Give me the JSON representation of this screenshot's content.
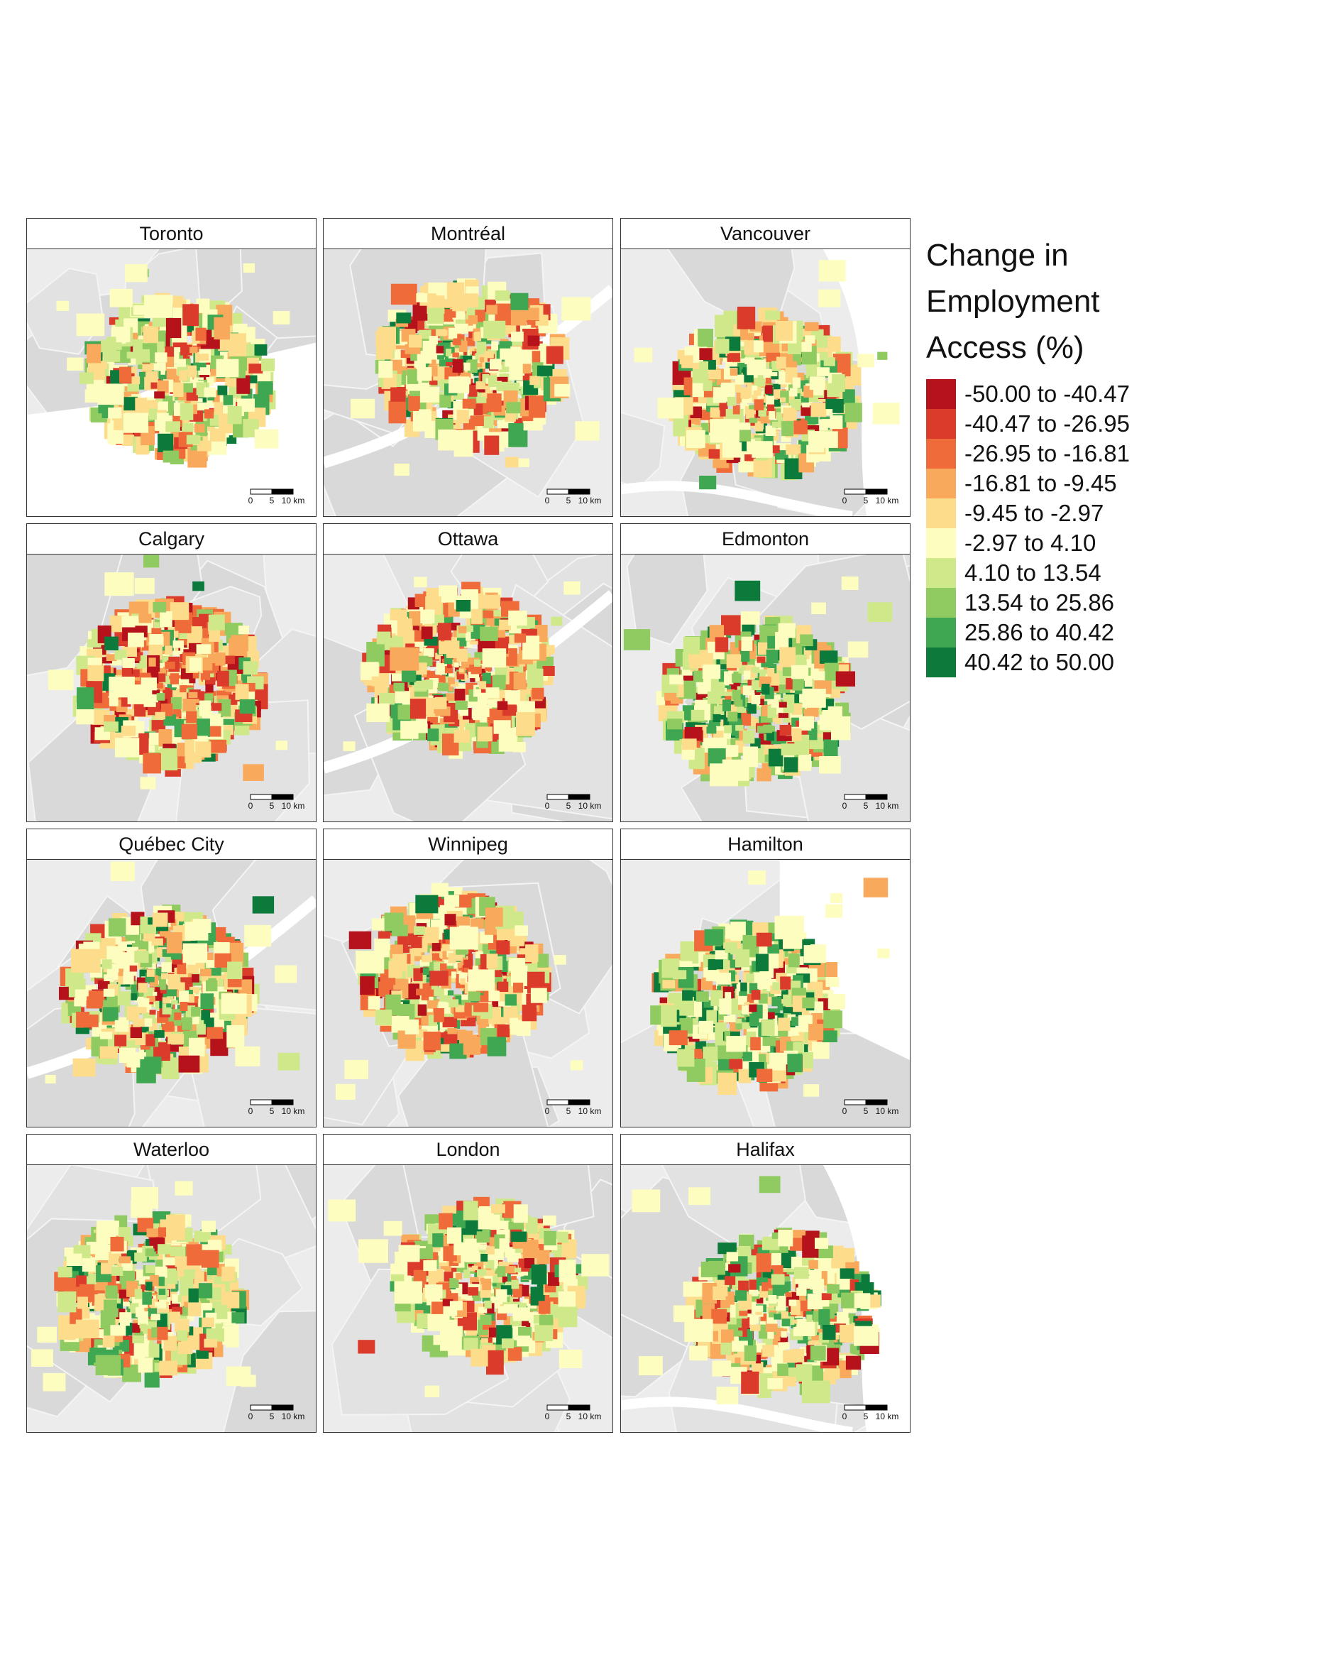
{
  "legend": {
    "title_lines": [
      "Change in",
      "Employment",
      "Access (%)"
    ],
    "classes": [
      {
        "label": "-50.00 to -40.47",
        "color": "#b5121b"
      },
      {
        "label": "-40.47 to -26.95",
        "color": "#db3b2b"
      },
      {
        "label": "-26.95 to -16.81",
        "color": "#ef6c3a"
      },
      {
        "label": "-16.81 to -9.45",
        "color": "#f9a95c"
      },
      {
        "label": "-9.45 to -2.97",
        "color": "#fddc8c"
      },
      {
        "label": "-2.97 to 4.10",
        "color": "#fdfdc0"
      },
      {
        "label": "4.10 to 13.54",
        "color": "#cfe98a"
      },
      {
        "label": "13.54 to 25.86",
        "color": "#8fcb60"
      },
      {
        "label": "25.86 to 40.42",
        "color": "#3fa652"
      },
      {
        "label": "40.42 to 50.00",
        "color": "#0b7a3b"
      }
    ]
  },
  "scale_bar": {
    "ticks": [
      "0",
      "5",
      "10 km"
    ]
  },
  "panels": [
    {
      "name": "Toronto",
      "water": "lake-se"
    },
    {
      "name": "Montréal",
      "water": "river"
    },
    {
      "name": "Vancouver",
      "water": "coast"
    },
    {
      "name": "Calgary",
      "water": "none"
    },
    {
      "name": "Ottawa",
      "water": "river"
    },
    {
      "name": "Edmonton",
      "water": "none"
    },
    {
      "name": "Québec City",
      "water": "river"
    },
    {
      "name": "Winnipeg",
      "water": "none"
    },
    {
      "name": "Hamilton",
      "water": "lake-ne"
    },
    {
      "name": "Waterloo",
      "water": "none"
    },
    {
      "name": "London",
      "water": "none"
    },
    {
      "name": "Halifax",
      "water": "coast"
    }
  ]
}
